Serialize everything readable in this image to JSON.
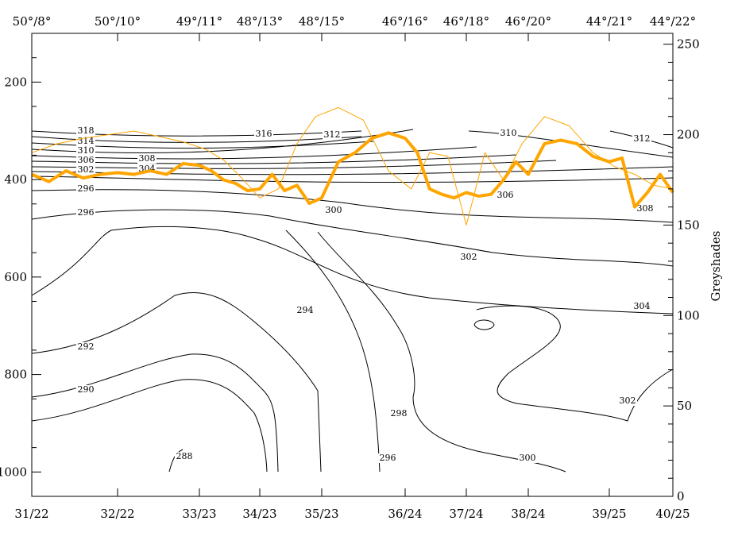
{
  "chart_data": {
    "type": "line",
    "title": "",
    "xlabel": "",
    "ylabel": "",
    "y2label": "Greyshades",
    "colors": {
      "contour": "#000000",
      "series": "#FFA500",
      "background": "#ffffff"
    },
    "bottom_tick_labels": [
      "31/22",
      "32/22",
      "33/23",
      "34/23",
      "35/23",
      "36/24",
      "37/24",
      "38/24",
      "39/25",
      "40/25"
    ],
    "top_tick_labels": [
      "50°/8°",
      "50°/10°",
      "49°/11°",
      "48°/13°",
      "48°/15°",
      "46°/16°",
      "46°/18°",
      "46°/20°",
      "44°/21°",
      "44°/22°"
    ],
    "y_left": {
      "ticks": [
        200,
        400,
        600,
        800,
        1000
      ],
      "range": [
        1050,
        100
      ],
      "inverted": true
    },
    "y_right": {
      "ticks": [
        0,
        50,
        100,
        150,
        200,
        250
      ],
      "range": [
        0,
        256
      ]
    },
    "contour_labels": [
      "318",
      "314",
      "310",
      "306",
      "302",
      "296",
      "296",
      "308",
      "304",
      "316",
      "312",
      "300",
      "310",
      "306",
      "312",
      "308",
      "302",
      "294",
      "292",
      "290",
      "298",
      "296",
      "288",
      "300",
      "304",
      "302"
    ],
    "series": [
      {
        "name": "",
        "style": "thick",
        "x": [
          0,
          0.2,
          0.4,
          0.6,
          0.8,
          1,
          1.2,
          1.4,
          1.6,
          1.8,
          2,
          2.2,
          2.4,
          2.6,
          2.8,
          3,
          3.2,
          3.4,
          3.6,
          3.8,
          4,
          4.2,
          4.4,
          4.6,
          4.8,
          5,
          5.2,
          5.4,
          5.6,
          5.8,
          6,
          6.2,
          6.4,
          6.6,
          6.8,
          7,
          7.2,
          7.4,
          7.6,
          7.8,
          8,
          8.2,
          8.4,
          8.6,
          8.8,
          9
        ],
        "y": [
          178,
          174,
          180,
          176,
          178,
          179,
          178,
          180,
          178,
          184,
          183,
          180,
          175,
          173,
          169,
          170,
          178,
          169,
          172,
          162,
          165,
          185,
          190,
          198,
          201,
          198,
          190,
          170,
          167,
          165,
          168,
          166,
          167,
          175,
          185,
          178,
          195,
          197,
          195,
          188,
          185,
          187,
          160,
          168,
          178,
          168
        ]
      },
      {
        "name": "",
        "style": "thin",
        "x": [
          0,
          0.3,
          0.6,
          0.9,
          1.2,
          1.5,
          1.8,
          2.1,
          2.4,
          2.7,
          3,
          3.3,
          3.6,
          3.9,
          4.2,
          4.5,
          4.8,
          5.1,
          5.4,
          5.7,
          6,
          6.3,
          6.6,
          6.9,
          7.2,
          7.5,
          7.8,
          8.1,
          8.4,
          8.7,
          9
        ],
        "y": [
          190,
          195,
          198,
          200,
          202,
          199,
          196,
          192,
          186,
          176,
          165,
          170,
          195,
          210,
          215,
          208,
          180,
          170,
          190,
          188,
          150,
          190,
          175,
          195,
          210,
          205,
          190,
          182,
          178,
          172,
          170
        ]
      }
    ]
  }
}
